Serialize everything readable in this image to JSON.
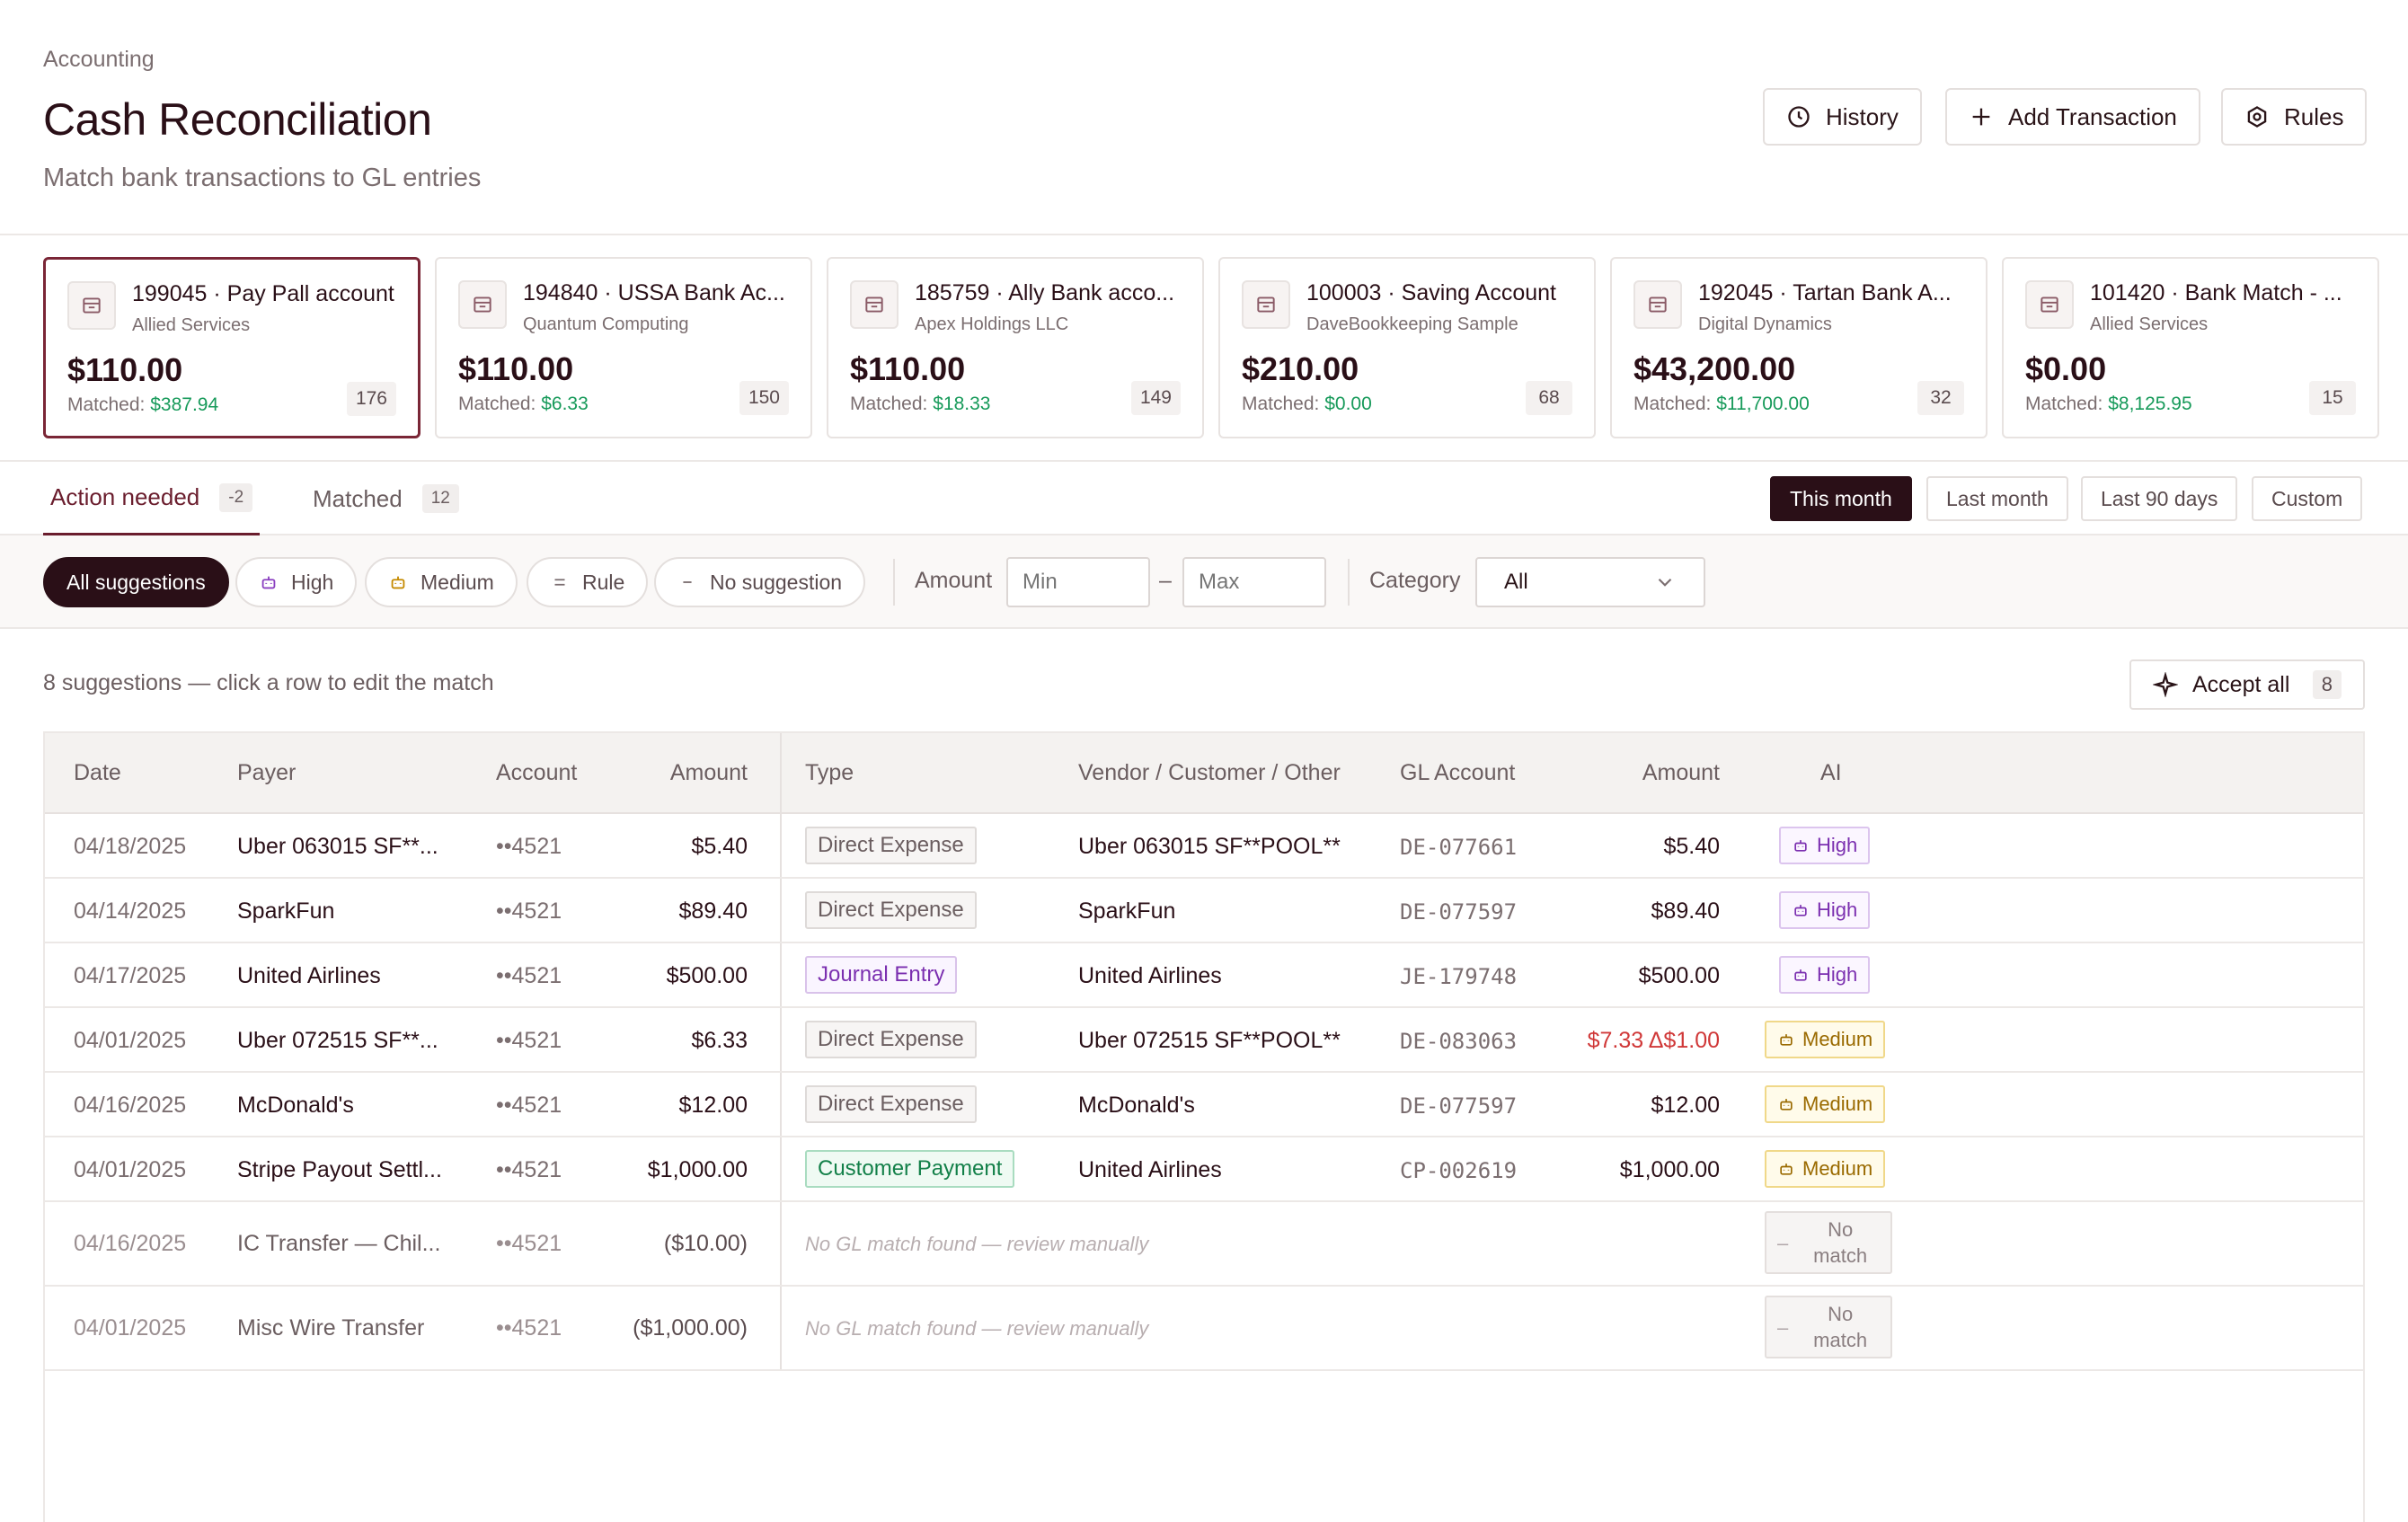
{
  "header": {
    "breadcrumb": "Accounting",
    "title": "Cash Reconciliation",
    "subtitle": "Match bank transactions to GL entries",
    "buttons": {
      "history": "History",
      "add": "Add Transaction",
      "rules": "Rules"
    }
  },
  "accounts": [
    {
      "name": "199045 · Pay Pall account",
      "sub": "Allied Services",
      "amount": "$110.00",
      "matched_label": "Matched:",
      "matched": "$387.94",
      "count": "176"
    },
    {
      "name": "194840 · USSA Bank Ac...",
      "sub": "Quantum Computing",
      "amount": "$110.00",
      "matched_label": "Matched:",
      "matched": "$6.33",
      "count": "150"
    },
    {
      "name": "185759 · Ally Bank acco...",
      "sub": "Apex Holdings LLC",
      "amount": "$110.00",
      "matched_label": "Matched:",
      "matched": "$18.33",
      "count": "149"
    },
    {
      "name": "100003 · Saving Account",
      "sub": "DaveBookkeeping Sample",
      "amount": "$210.00",
      "matched_label": "Matched:",
      "matched": "$0.00",
      "count": "68"
    },
    {
      "name": "192045 · Tartan Bank A...",
      "sub": "Digital Dynamics",
      "amount": "$43,200.00",
      "matched_label": "Matched:",
      "matched": "$11,700.00",
      "count": "32"
    },
    {
      "name": "101420 · Bank Match - ...",
      "sub": "Allied Services",
      "amount": "$0.00",
      "matched_label": "Matched:",
      "matched": "$8,125.95",
      "count": "15"
    }
  ],
  "tabs": [
    {
      "label": "Action needed",
      "count": "-2"
    },
    {
      "label": "Matched",
      "count": "12"
    }
  ],
  "date_filters": [
    "This month",
    "Last month",
    "Last 90 days",
    "Custom"
  ],
  "filters": {
    "chips": [
      "All suggestions",
      "High",
      "Medium",
      "Rule",
      "No suggestion"
    ],
    "amount_label": "Amount",
    "min_placeholder": "Min",
    "range_sep": "–",
    "max_placeholder": "Max",
    "category_label": "Category",
    "category_value": "All"
  },
  "suggestions": {
    "text": "8 suggestions — click a row to edit the match",
    "accept_label": "Accept all",
    "accept_count": "8"
  },
  "table": {
    "headers": [
      "Date",
      "Payer",
      "Account",
      "Amount",
      "Type",
      "Vendor / Customer / Other",
      "GL Account",
      "Amount",
      "AI"
    ],
    "rows": [
      {
        "date": "04/18/2025",
        "payer": "Uber 063015 SF**...",
        "account": "••4521",
        "amount": "$5.40",
        "type": "Direct Expense",
        "vendor": "Uber 063015 SF**POOL**",
        "gl": "DE-077661",
        "gl_amount": "$5.40",
        "ai": "High"
      },
      {
        "date": "04/14/2025",
        "payer": "SparkFun",
        "account": "••4521",
        "amount": "$89.40",
        "type": "Direct Expense",
        "vendor": "SparkFun",
        "gl": "DE-077597",
        "gl_amount": "$89.40",
        "ai": "High"
      },
      {
        "date": "04/17/2025",
        "payer": "United Airlines",
        "account": "••4521",
        "amount": "$500.00",
        "type": "Journal Entry",
        "vendor": "United Airlines",
        "gl": "JE-179748",
        "gl_amount": "$500.00",
        "ai": "High"
      },
      {
        "date": "04/01/2025",
        "payer": "Uber 072515 SF**...",
        "account": "••4521",
        "amount": "$6.33",
        "type": "Direct Expense",
        "vendor": "Uber 072515 SF**POOL**",
        "gl": "DE-083063",
        "gl_amount": "$7.33 Δ$1.00",
        "ai": "Medium"
      },
      {
        "date": "04/16/2025",
        "payer": "McDonald's",
        "account": "••4521",
        "amount": "$12.00",
        "type": "Direct Expense",
        "vendor": "McDonald's",
        "gl": "DE-077597",
        "gl_amount": "$12.00",
        "ai": "Medium"
      },
      {
        "date": "04/01/2025",
        "payer": "Stripe Payout Settl...",
        "account": "••4521",
        "amount": "$1,000.00",
        "type": "Customer Payment",
        "vendor": "United Airlines",
        "gl": "CP-002619",
        "gl_amount": "$1,000.00",
        "ai": "Medium"
      },
      {
        "date": "04/16/2025",
        "payer": "IC Transfer — Chil...",
        "account": "••4521",
        "amount": "($10.00)",
        "no_gl": "No GL match found — review manually",
        "ai_dash": "–",
        "ai_line1": "No",
        "ai_line2": "match"
      },
      {
        "date": "04/01/2025",
        "payer": "Misc Wire Transfer",
        "account": "••4521",
        "amount": "($1,000.00)",
        "no_gl": "No GL match found — review manually",
        "ai_dash": "–",
        "ai_line1": "No",
        "ai_line2": "match"
      }
    ]
  },
  "colors": {
    "accent": "#2a0f17",
    "active_tab": "#6a1d2d",
    "matched_green": "#179a5a",
    "delta_red": "#d03838"
  },
  "icons": [
    "clock-icon",
    "plus-icon",
    "settings-icon",
    "bank-icon",
    "robot-icon",
    "rule-icon",
    "dash-icon",
    "sparkle-icon",
    "chevron-down-icon"
  ]
}
